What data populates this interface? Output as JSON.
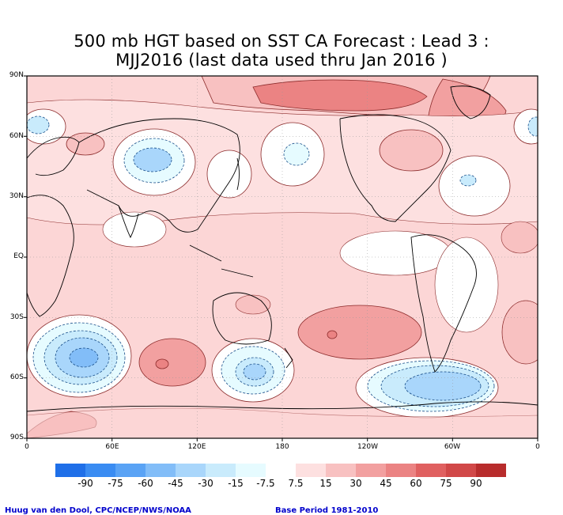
{
  "title": {
    "line1": "500 mb HGT based on SST CA Forecast : Lead 3 :",
    "line2": "MJJ2016 (last data used thru Jan 2016 )"
  },
  "axes": {
    "lat_labels": [
      "90N",
      "60N",
      "30N",
      "EQ",
      "30S",
      "60S",
      "90S"
    ],
    "lon_labels": [
      "0",
      "60E",
      "120E",
      "180",
      "120W",
      "60W",
      "0"
    ]
  },
  "colorbar": {
    "labels": [
      "-90",
      "-75",
      "-60",
      "-45",
      "-30",
      "-15",
      "-7.5",
      "7.5",
      "15",
      "30",
      "45",
      "60",
      "75",
      "90"
    ],
    "colors": [
      "#1f6fe8",
      "#3a8cf2",
      "#5aa3f5",
      "#82bdf8",
      "#a9d6fb",
      "#c9ebfc",
      "#e6fbff",
      "#ffffff",
      "#fde0e0",
      "#f8c1c1",
      "#f2a0a0",
      "#eb8383",
      "#e06060",
      "#d14848",
      "#b82c2c"
    ]
  },
  "footer": {
    "left": "Huug van den Dool, CPC/NCEP/NWS/NOAA",
    "right": "Base Period 1981-2010"
  },
  "map": {
    "background_color": "#fcd6d6",
    "colors": {
      "weak_pos": "#fde0e0",
      "pos": "#f8c1c1",
      "strong_pos": "#f2a0a0",
      "very_strong_pos": "#eb8383",
      "peak_pos": "#e06060",
      "neutral": "#ffffff",
      "weak_neg": "#e6fbff",
      "neg": "#c9ebfc",
      "mid_neg": "#a9d6fb",
      "strong_neg": "#82bdf8",
      "contour": "#8b2a2a",
      "neg_contour": "#1a4f8a",
      "coast": "#000000"
    }
  }
}
